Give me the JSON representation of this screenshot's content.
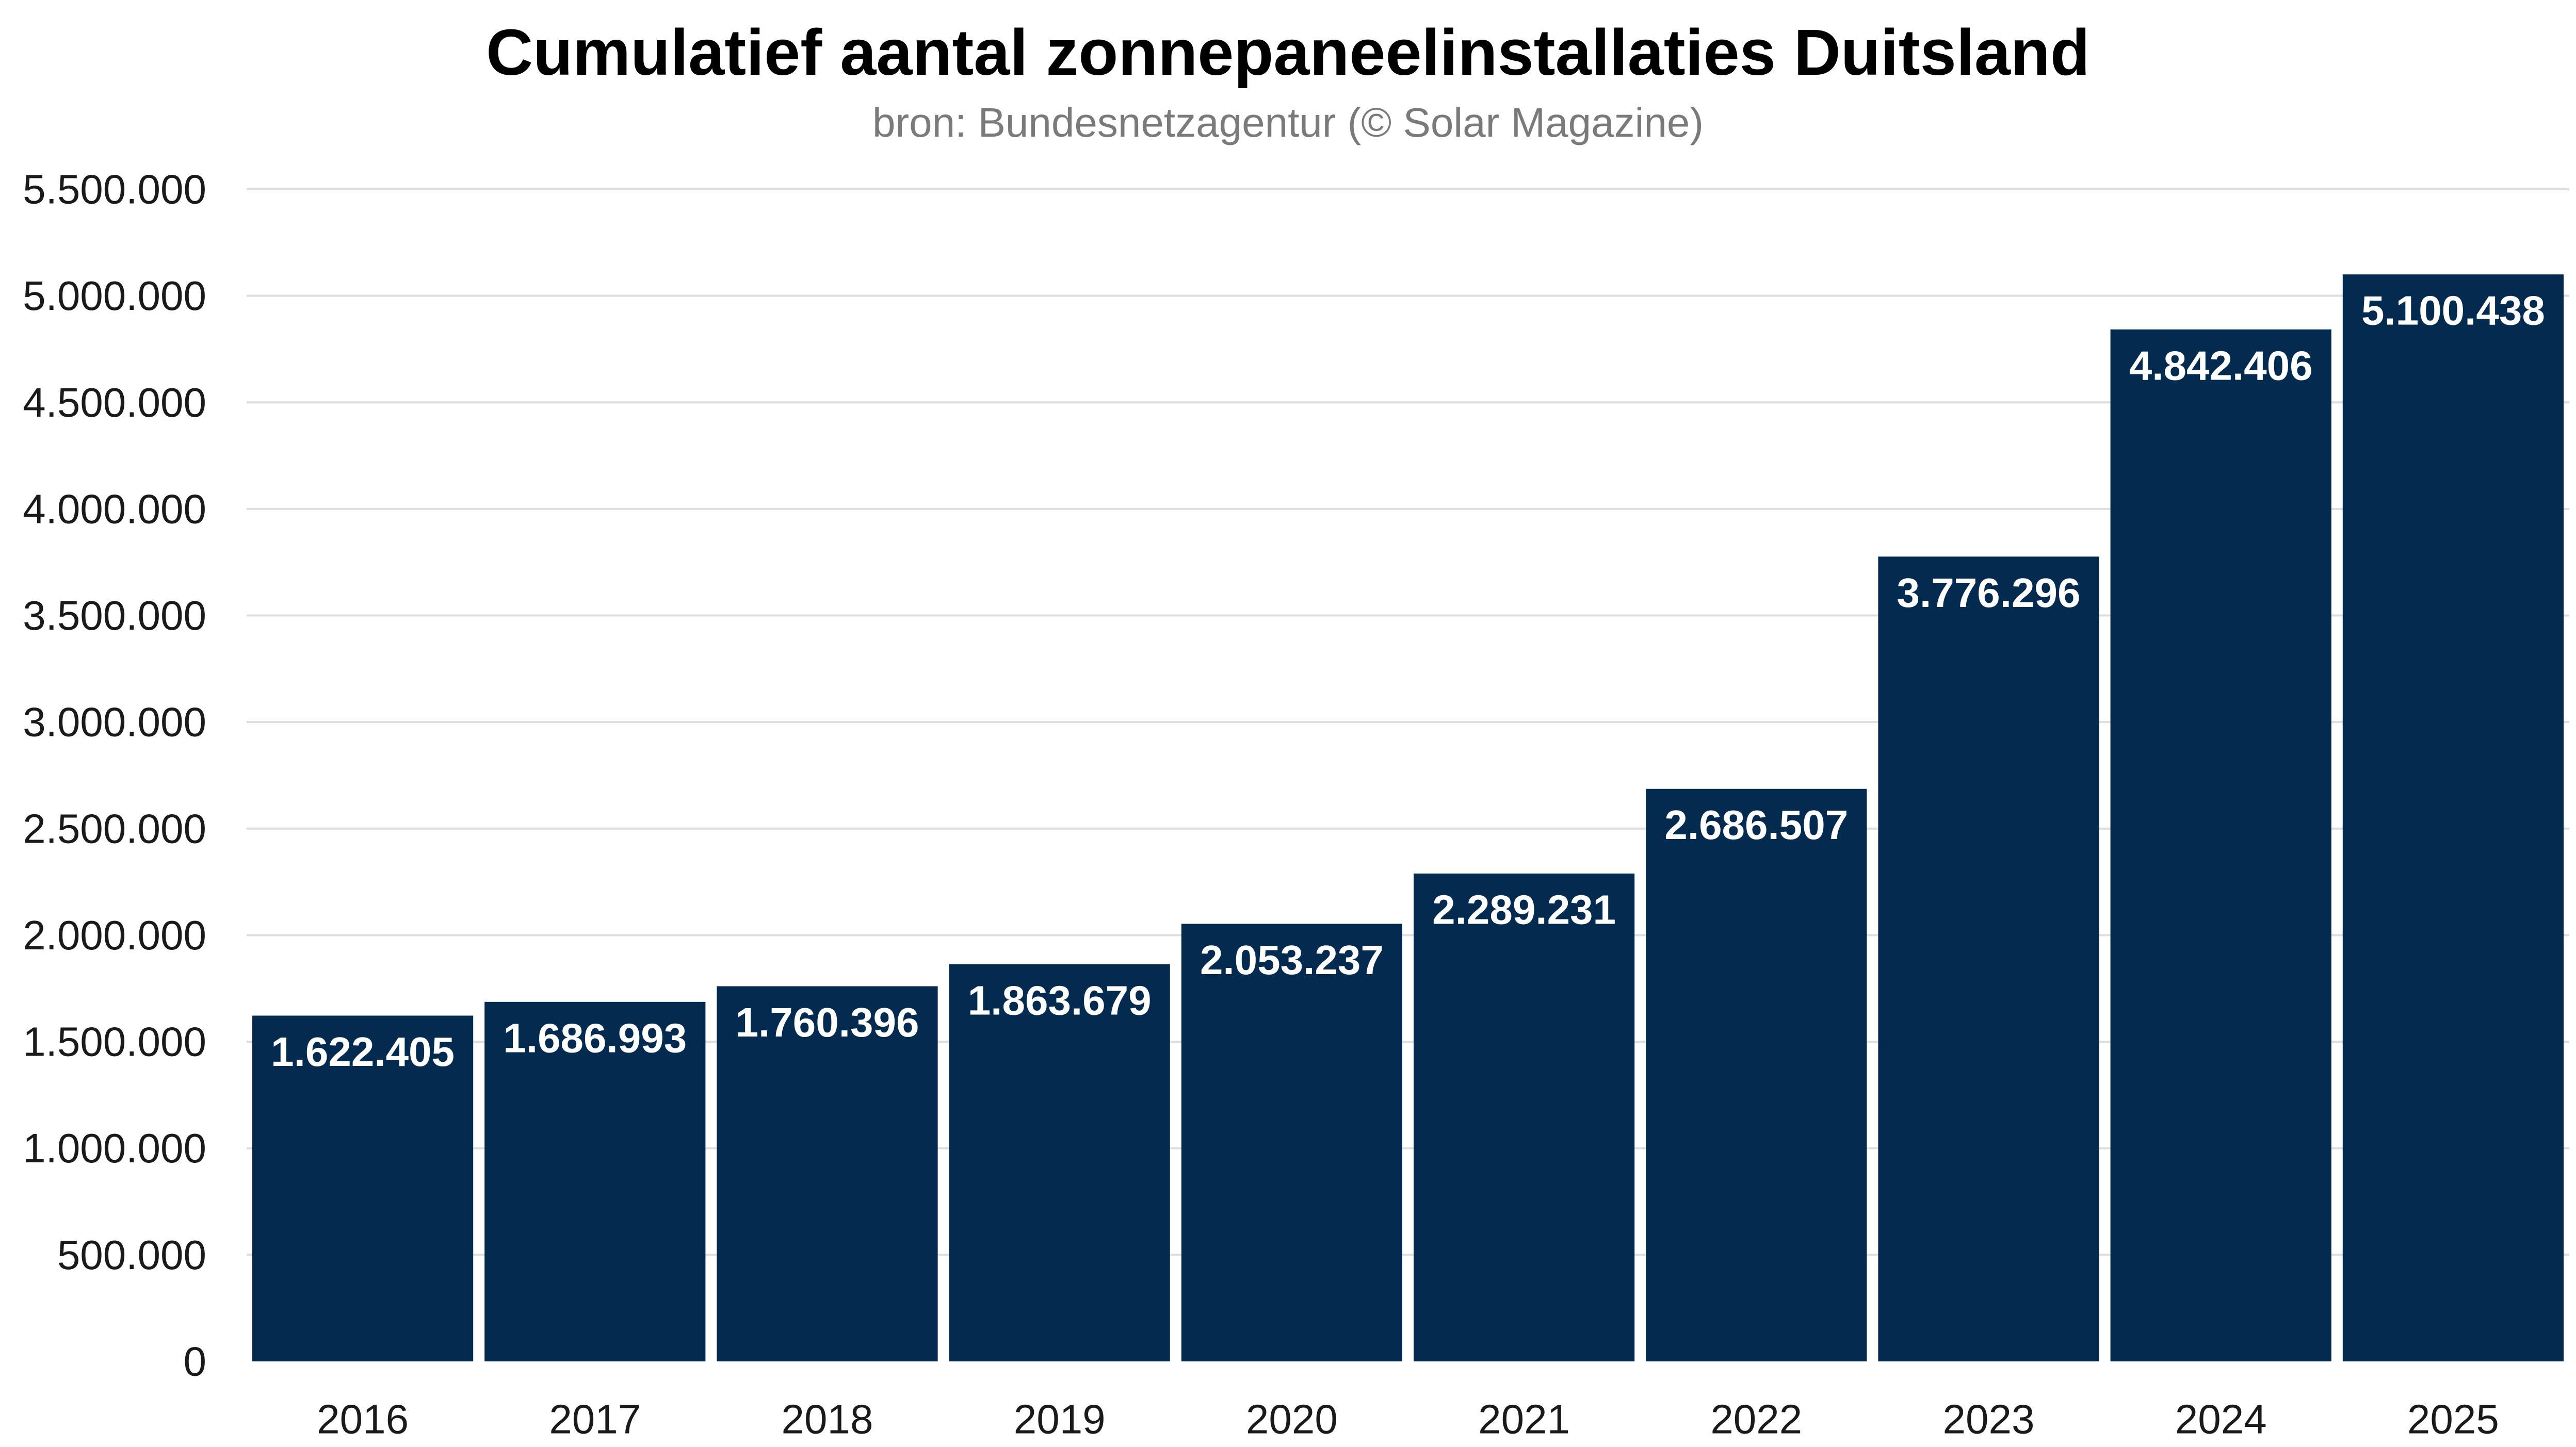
{
  "chart_data": {
    "type": "bar",
    "title": "Cumulatief aantal zonnepaneelinstallaties Duitsland",
    "subtitle": "bron: Bundesnetzagentur (© Solar Magazine)",
    "categories": [
      "2016",
      "2017",
      "2018",
      "2019",
      "2020",
      "2021",
      "2022",
      "2023",
      "2024",
      "2025"
    ],
    "values": [
      1622405,
      1686993,
      1760396,
      1863679,
      2053237,
      2289231,
      2686507,
      3776296,
      4842406,
      5100438
    ],
    "data_labels": [
      "1.622.405",
      "1.686.993",
      "1.760.396",
      "1.863.679",
      "2.053.237",
      "2.289.231",
      "2.686.507",
      "3.776.296",
      "4.842.406",
      "5.100.438"
    ],
    "yticks": [
      0,
      500000,
      1000000,
      1500000,
      2000000,
      2500000,
      3000000,
      3500000,
      4000000,
      4500000,
      5000000,
      5500000
    ],
    "ytick_labels": [
      "0",
      "500.000",
      "1.000.000",
      "1.500.000",
      "2.000.000",
      "2.500.000",
      "3.000.000",
      "3.500.000",
      "4.000.000",
      "4.500.000",
      "5.000.000",
      "5.500.000"
    ],
    "ylim": [
      0,
      5500000
    ],
    "xlabel": "",
    "ylabel": "",
    "grid": true,
    "bar_color": "#022b4f",
    "grid_color": "#dedede",
    "label_color": "#ffffff"
  }
}
